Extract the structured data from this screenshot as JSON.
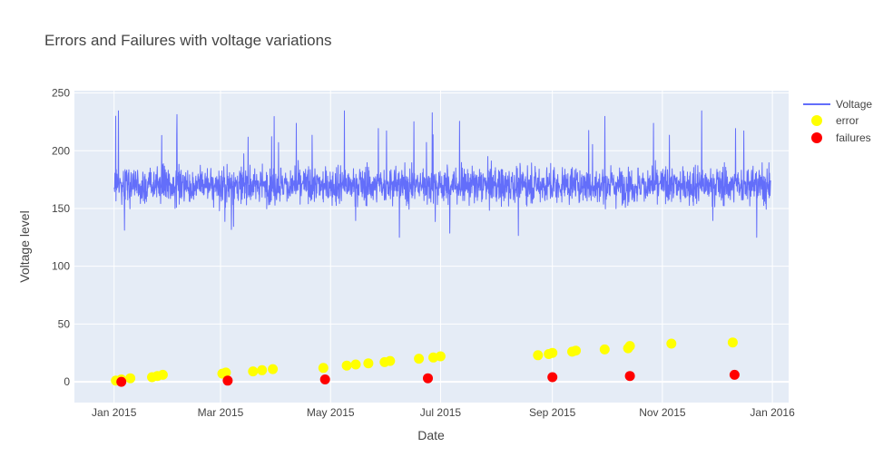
{
  "chart_data": {
    "type": "line",
    "title": "Errors and Failures with voltage variations",
    "xlabel": "Date",
    "ylabel": "Voltage level",
    "xlim": [
      "2014-12-10",
      "2016-01-10"
    ],
    "ylim": [
      -18,
      252
    ],
    "grid": true,
    "legend_position": "top-right",
    "x_ticks": [
      {
        "date": "2015-01-01",
        "label": "Jan 2015"
      },
      {
        "date": "2015-03-01",
        "label": "Mar 2015"
      },
      {
        "date": "2015-05-01",
        "label": "May 2015"
      },
      {
        "date": "2015-07-01",
        "label": "Jul 2015"
      },
      {
        "date": "2015-09-01",
        "label": "Sep 2015"
      },
      {
        "date": "2015-11-01",
        "label": "Nov 2015"
      },
      {
        "date": "2016-01-01",
        "label": "Jan 2016"
      }
    ],
    "y_ticks": [
      0,
      50,
      100,
      150,
      200,
      250
    ],
    "series": [
      {
        "name": "Voltage",
        "kind": "line",
        "color": "#636efa",
        "x_start": "2015-01-01",
        "x_end": "2015-12-31",
        "mean": 170,
        "typical_range": [
          145,
          195
        ],
        "min": 120,
        "max": 237
      },
      {
        "name": "error",
        "kind": "markers",
        "color": "#ffff00",
        "points": [
          {
            "x": "2015-01-02",
            "y": 1
          },
          {
            "x": "2015-01-05",
            "y": 2
          },
          {
            "x": "2015-01-10",
            "y": 3
          },
          {
            "x": "2015-01-22",
            "y": 4
          },
          {
            "x": "2015-01-25",
            "y": 5
          },
          {
            "x": "2015-01-28",
            "y": 6
          },
          {
            "x": "2015-03-02",
            "y": 7
          },
          {
            "x": "2015-03-04",
            "y": 8
          },
          {
            "x": "2015-03-19",
            "y": 9
          },
          {
            "x": "2015-03-24",
            "y": 10
          },
          {
            "x": "2015-03-30",
            "y": 11
          },
          {
            "x": "2015-04-27",
            "y": 12
          },
          {
            "x": "2015-05-10",
            "y": 14
          },
          {
            "x": "2015-05-15",
            "y": 15
          },
          {
            "x": "2015-05-22",
            "y": 16
          },
          {
            "x": "2015-05-31",
            "y": 17
          },
          {
            "x": "2015-06-03",
            "y": 18
          },
          {
            "x": "2015-06-19",
            "y": 20
          },
          {
            "x": "2015-06-27",
            "y": 21
          },
          {
            "x": "2015-07-01",
            "y": 22
          },
          {
            "x": "2015-08-24",
            "y": 23
          },
          {
            "x": "2015-08-30",
            "y": 24
          },
          {
            "x": "2015-09-01",
            "y": 25
          },
          {
            "x": "2015-09-12",
            "y": 26
          },
          {
            "x": "2015-09-14",
            "y": 27
          },
          {
            "x": "2015-09-30",
            "y": 28
          },
          {
            "x": "2015-10-13",
            "y": 29
          },
          {
            "x": "2015-10-14",
            "y": 31
          },
          {
            "x": "2015-11-06",
            "y": 33
          },
          {
            "x": "2015-12-10",
            "y": 34
          }
        ]
      },
      {
        "name": "failures",
        "kind": "markers",
        "color": "#ff0000",
        "points": [
          {
            "x": "2015-01-05",
            "y": 0
          },
          {
            "x": "2015-03-05",
            "y": 1
          },
          {
            "x": "2015-04-28",
            "y": 2
          },
          {
            "x": "2015-06-24",
            "y": 3
          },
          {
            "x": "2015-09-01",
            "y": 4
          },
          {
            "x": "2015-10-14",
            "y": 5
          },
          {
            "x": "2015-12-11",
            "y": 6
          }
        ]
      }
    ]
  }
}
